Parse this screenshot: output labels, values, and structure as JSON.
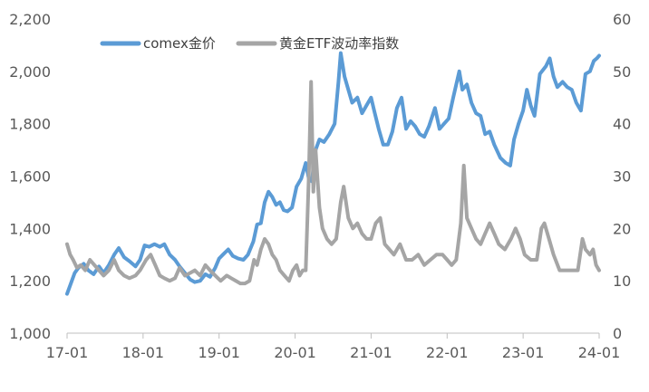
{
  "chart_data": {
    "type": "line",
    "legend_position": "top",
    "grid": false,
    "xlabel": "",
    "ylabel": "",
    "y2label": "",
    "x_ticks": [
      "17-01",
      "18-01",
      "19-01",
      "20-01",
      "21-01",
      "22-01",
      "23-01",
      "24-01"
    ],
    "xlim": [
      2017.0,
      2024.0
    ],
    "ylim": [
      1000,
      2200
    ],
    "y_ticks": [
      "1,000",
      "1,200",
      "1,400",
      "1,600",
      "1,800",
      "2,000",
      "2,200"
    ],
    "y2lim": [
      0,
      60
    ],
    "y2_ticks": [
      "0",
      "10",
      "20",
      "30",
      "40",
      "50",
      "60"
    ],
    "series": [
      {
        "name": "comex金价",
        "axis": "left",
        "color": "#5B9BD5",
        "points": [
          [
            2017.0,
            1150
          ],
          [
            2017.05,
            1190
          ],
          [
            2017.1,
            1230
          ],
          [
            2017.15,
            1250
          ],
          [
            2017.22,
            1265
          ],
          [
            2017.28,
            1240
          ],
          [
            2017.35,
            1225
          ],
          [
            2017.42,
            1255
          ],
          [
            2017.48,
            1230
          ],
          [
            2017.55,
            1260
          ],
          [
            2017.62,
            1300
          ],
          [
            2017.68,
            1325
          ],
          [
            2017.75,
            1290
          ],
          [
            2017.82,
            1275
          ],
          [
            2017.9,
            1255
          ],
          [
            2017.96,
            1280
          ],
          [
            2018.02,
            1335
          ],
          [
            2018.08,
            1330
          ],
          [
            2018.15,
            1340
          ],
          [
            2018.22,
            1330
          ],
          [
            2018.28,
            1340
          ],
          [
            2018.35,
            1300
          ],
          [
            2018.42,
            1280
          ],
          [
            2018.48,
            1255
          ],
          [
            2018.55,
            1230
          ],
          [
            2018.62,
            1205
          ],
          [
            2018.68,
            1195
          ],
          [
            2018.75,
            1200
          ],
          [
            2018.82,
            1225
          ],
          [
            2018.88,
            1215
          ],
          [
            2018.95,
            1250
          ],
          [
            2019.0,
            1285
          ],
          [
            2019.05,
            1300
          ],
          [
            2019.12,
            1320
          ],
          [
            2019.18,
            1295
          ],
          [
            2019.25,
            1285
          ],
          [
            2019.32,
            1280
          ],
          [
            2019.38,
            1300
          ],
          [
            2019.45,
            1350
          ],
          [
            2019.5,
            1415
          ],
          [
            2019.55,
            1420
          ],
          [
            2019.6,
            1500
          ],
          [
            2019.65,
            1540
          ],
          [
            2019.7,
            1520
          ],
          [
            2019.75,
            1490
          ],
          [
            2019.8,
            1500
          ],
          [
            2019.85,
            1470
          ],
          [
            2019.9,
            1465
          ],
          [
            2019.96,
            1480
          ],
          [
            2020.02,
            1560
          ],
          [
            2020.08,
            1590
          ],
          [
            2020.14,
            1650
          ],
          [
            2020.18,
            1590
          ],
          [
            2020.22,
            1580
          ],
          [
            2020.27,
            1700
          ],
          [
            2020.32,
            1740
          ],
          [
            2020.38,
            1730
          ],
          [
            2020.45,
            1760
          ],
          [
            2020.52,
            1800
          ],
          [
            2020.57,
            1960
          ],
          [
            2020.6,
            2070
          ],
          [
            2020.65,
            1980
          ],
          [
            2020.7,
            1930
          ],
          [
            2020.75,
            1880
          ],
          [
            2020.82,
            1900
          ],
          [
            2020.88,
            1840
          ],
          [
            2020.94,
            1870
          ],
          [
            2021.0,
            1900
          ],
          [
            2021.04,
            1850
          ],
          [
            2021.1,
            1780
          ],
          [
            2021.16,
            1720
          ],
          [
            2021.22,
            1720
          ],
          [
            2021.28,
            1770
          ],
          [
            2021.34,
            1860
          ],
          [
            2021.4,
            1900
          ],
          [
            2021.46,
            1780
          ],
          [
            2021.52,
            1810
          ],
          [
            2021.58,
            1790
          ],
          [
            2021.64,
            1760
          ],
          [
            2021.7,
            1750
          ],
          [
            2021.76,
            1790
          ],
          [
            2021.84,
            1860
          ],
          [
            2021.9,
            1780
          ],
          [
            2021.96,
            1800
          ],
          [
            2022.02,
            1820
          ],
          [
            2022.08,
            1900
          ],
          [
            2022.16,
            2000
          ],
          [
            2022.2,
            1930
          ],
          [
            2022.26,
            1950
          ],
          [
            2022.32,
            1880
          ],
          [
            2022.38,
            1840
          ],
          [
            2022.44,
            1830
          ],
          [
            2022.5,
            1760
          ],
          [
            2022.56,
            1770
          ],
          [
            2022.62,
            1720
          ],
          [
            2022.7,
            1670
          ],
          [
            2022.77,
            1650
          ],
          [
            2022.83,
            1640
          ],
          [
            2022.88,
            1740
          ],
          [
            2022.94,
            1800
          ],
          [
            2023.0,
            1850
          ],
          [
            2023.05,
            1930
          ],
          [
            2023.1,
            1870
          ],
          [
            2023.15,
            1830
          ],
          [
            2023.22,
            1990
          ],
          [
            2023.3,
            2020
          ],
          [
            2023.35,
            2050
          ],
          [
            2023.4,
            1980
          ],
          [
            2023.45,
            1940
          ],
          [
            2023.52,
            1960
          ],
          [
            2023.58,
            1940
          ],
          [
            2023.64,
            1930
          ],
          [
            2023.7,
            1880
          ],
          [
            2023.76,
            1850
          ],
          [
            2023.82,
            1990
          ],
          [
            2023.88,
            2000
          ],
          [
            2023.93,
            2040
          ],
          [
            2023.97,
            2050
          ],
          [
            2024.0,
            2060
          ]
        ]
      },
      {
        "name": "黄金ETF波动率指数",
        "axis": "right",
        "color": "#A5A5A5",
        "points": [
          [
            2017.0,
            17
          ],
          [
            2017.04,
            15
          ],
          [
            2017.08,
            14
          ],
          [
            2017.13,
            12.5
          ],
          [
            2017.18,
            13
          ],
          [
            2017.24,
            12
          ],
          [
            2017.3,
            14
          ],
          [
            2017.36,
            13
          ],
          [
            2017.42,
            12
          ],
          [
            2017.48,
            11
          ],
          [
            2017.55,
            12
          ],
          [
            2017.62,
            14
          ],
          [
            2017.68,
            12
          ],
          [
            2017.75,
            11
          ],
          [
            2017.82,
            10.5
          ],
          [
            2017.9,
            11
          ],
          [
            2017.96,
            12
          ],
          [
            2018.04,
            14
          ],
          [
            2018.1,
            15
          ],
          [
            2018.16,
            13
          ],
          [
            2018.22,
            11
          ],
          [
            2018.28,
            10.5
          ],
          [
            2018.35,
            10
          ],
          [
            2018.42,
            10.5
          ],
          [
            2018.48,
            12.5
          ],
          [
            2018.55,
            11
          ],
          [
            2018.62,
            11.5
          ],
          [
            2018.68,
            12
          ],
          [
            2018.75,
            11
          ],
          [
            2018.82,
            13
          ],
          [
            2018.88,
            12
          ],
          [
            2018.95,
            11
          ],
          [
            2019.02,
            10
          ],
          [
            2019.1,
            11
          ],
          [
            2019.16,
            10.5
          ],
          [
            2019.22,
            10
          ],
          [
            2019.28,
            9.5
          ],
          [
            2019.34,
            9.5
          ],
          [
            2019.4,
            10
          ],
          [
            2019.46,
            14
          ],
          [
            2019.5,
            13
          ],
          [
            2019.55,
            16
          ],
          [
            2019.6,
            18
          ],
          [
            2019.65,
            17
          ],
          [
            2019.7,
            15
          ],
          [
            2019.75,
            14
          ],
          [
            2019.8,
            12
          ],
          [
            2019.86,
            11
          ],
          [
            2019.92,
            10
          ],
          [
            2019.97,
            12
          ],
          [
            2020.02,
            13
          ],
          [
            2020.06,
            11
          ],
          [
            2020.1,
            12
          ],
          [
            2020.14,
            12
          ],
          [
            2020.18,
            30
          ],
          [
            2020.21,
            48
          ],
          [
            2020.24,
            27
          ],
          [
            2020.27,
            35
          ],
          [
            2020.32,
            24
          ],
          [
            2020.36,
            20
          ],
          [
            2020.42,
            18
          ],
          [
            2020.48,
            17
          ],
          [
            2020.54,
            18
          ],
          [
            2020.6,
            25
          ],
          [
            2020.64,
            28
          ],
          [
            2020.7,
            22
          ],
          [
            2020.76,
            20
          ],
          [
            2020.82,
            21
          ],
          [
            2020.88,
            19
          ],
          [
            2020.94,
            18
          ],
          [
            2021.0,
            18
          ],
          [
            2021.06,
            21
          ],
          [
            2021.12,
            22
          ],
          [
            2021.18,
            17
          ],
          [
            2021.24,
            16
          ],
          [
            2021.3,
            15
          ],
          [
            2021.38,
            17
          ],
          [
            2021.46,
            14
          ],
          [
            2021.54,
            14
          ],
          [
            2021.62,
            15
          ],
          [
            2021.7,
            13
          ],
          [
            2021.78,
            14
          ],
          [
            2021.86,
            15
          ],
          [
            2021.94,
            15
          ],
          [
            2022.0,
            14
          ],
          [
            2022.06,
            13
          ],
          [
            2022.12,
            14
          ],
          [
            2022.18,
            21
          ],
          [
            2022.22,
            32
          ],
          [
            2022.26,
            22
          ],
          [
            2022.32,
            20
          ],
          [
            2022.38,
            18
          ],
          [
            2022.44,
            17
          ],
          [
            2022.5,
            19
          ],
          [
            2022.56,
            21
          ],
          [
            2022.62,
            19
          ],
          [
            2022.68,
            17
          ],
          [
            2022.76,
            16
          ],
          [
            2022.84,
            18
          ],
          [
            2022.9,
            20
          ],
          [
            2022.96,
            18
          ],
          [
            2023.02,
            15
          ],
          [
            2023.1,
            14
          ],
          [
            2023.18,
            14
          ],
          [
            2023.24,
            20
          ],
          [
            2023.28,
            21
          ],
          [
            2023.34,
            18
          ],
          [
            2023.4,
            15
          ],
          [
            2023.48,
            12
          ],
          [
            2023.56,
            12
          ],
          [
            2023.64,
            12
          ],
          [
            2023.72,
            12
          ],
          [
            2023.78,
            18
          ],
          [
            2023.82,
            16
          ],
          [
            2023.88,
            15
          ],
          [
            2023.92,
            16
          ],
          [
            2023.96,
            13
          ],
          [
            2024.0,
            12
          ]
        ]
      }
    ]
  }
}
